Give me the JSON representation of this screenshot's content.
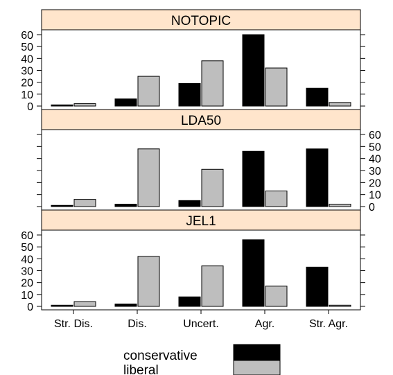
{
  "chart_data": {
    "type": "bar",
    "layout": "trellis",
    "categories": [
      "Str. Dis.",
      "Dis.",
      "Uncert.",
      "Agr.",
      "Str. Agr."
    ],
    "ylim": [
      0,
      60
    ],
    "yticks": [
      0,
      10,
      20,
      30,
      40,
      50,
      60
    ],
    "grid": false,
    "legend_position": "bottom",
    "series_colors": {
      "conservative": "#000000",
      "liberal": "#bebebe"
    },
    "strip_color": "#ffe5cc",
    "panels": [
      {
        "title": "NOTOPIC",
        "series": [
          {
            "name": "conservative",
            "values": [
              1,
              6,
              19,
              60,
              15
            ]
          },
          {
            "name": "liberal",
            "values": [
              2,
              25,
              38,
              32,
              3
            ]
          }
        ]
      },
      {
        "title": "LDA50",
        "series": [
          {
            "name": "conservative",
            "values": [
              1,
              2,
              5,
              46,
              48
            ]
          },
          {
            "name": "liberal",
            "values": [
              6,
              48,
              31,
              13,
              2
            ]
          }
        ]
      },
      {
        "title": "JEL1",
        "series": [
          {
            "name": "conservative",
            "values": [
              1,
              2,
              8,
              56,
              33
            ]
          },
          {
            "name": "liberal",
            "values": [
              4,
              42,
              34,
              17,
              1
            ]
          }
        ]
      }
    ]
  }
}
